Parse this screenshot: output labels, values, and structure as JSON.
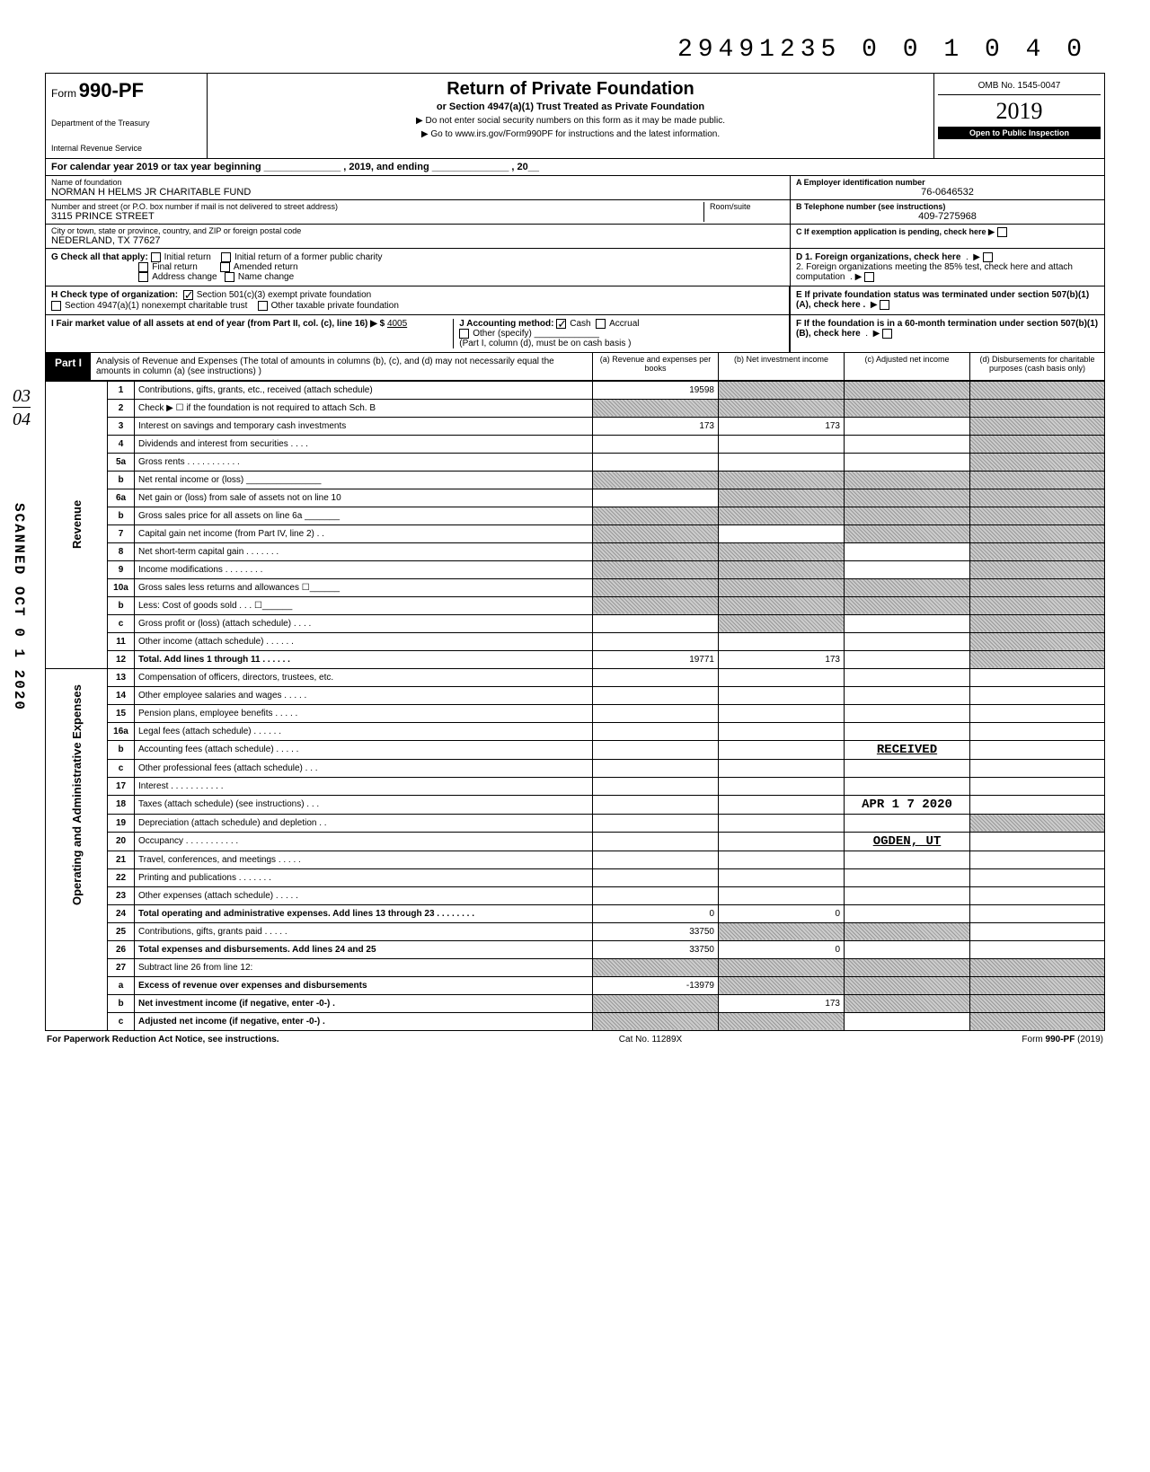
{
  "top_dln": "29491235 0 0 1 0 4   0",
  "header": {
    "form_prefix": "Form",
    "form_no": "990-PF",
    "dept1": "Department of the Treasury",
    "dept2": "Internal Revenue Service",
    "title": "Return of Private Foundation",
    "subtitle": "or Section 4947(a)(1) Trust Treated as Private Foundation",
    "line1": "▶ Do not enter social security numbers on this form as it may be made public.",
    "line2": "▶ Go to www.irs.gov/Form990PF for instructions and the latest information.",
    "omb": "OMB No. 1545-0047",
    "year": "2019",
    "open": "Open to Public Inspection"
  },
  "cal_year": "For calendar year 2019 or tax year beginning ______________ , 2019, and ending ______________ , 20__",
  "name_block": {
    "name_label": "Name of foundation",
    "name": "NORMAN H HELMS JR CHARITABLE FUND",
    "street_label": "Number and street (or P.O. box number if mail is not delivered to street address)",
    "street": "3115 PRINCE STREET",
    "room_label": "Room/suite",
    "city_label": "City or town, state or province, country, and ZIP or foreign postal code",
    "city": "NEDERLAND, TX 77627",
    "ein_label": "A  Employer identification number",
    "ein": "76-0646532",
    "tel_label": "B  Telephone number (see instructions)",
    "tel": "409-7275968",
    "c_label": "C  If exemption application is pending, check here ▶"
  },
  "checks": {
    "g_label": "G  Check all that apply:",
    "g_opts": [
      "Initial return",
      "Initial return of a former public charity",
      "Final return",
      "Amended return",
      "Address change",
      "Name change"
    ],
    "h_label": "H  Check type of organization:",
    "h_opts": [
      "Section 501(c)(3) exempt private foundation",
      "Section 4947(a)(1) nonexempt charitable trust",
      "Other taxable private foundation"
    ],
    "h_checked": 0,
    "i_label": "I   Fair market value of all assets at end of year  (from Part II, col. (c), line 16) ▶ $",
    "i_val": "4005",
    "j_label": "J   Accounting method:",
    "j_opts": [
      "Cash",
      "Accrual",
      "Other (specify)"
    ],
    "j_note": "(Part I, column (d), must be on cash basis )",
    "d_label": "D  1. Foreign organizations, check here",
    "d2_label": "2. Foreign organizations meeting the 85% test, check here and attach computation",
    "e_label": "E  If private foundation status was terminated under section 507(b)(1)(A), check here  .",
    "f_label": "F  If the foundation is in a 60-month termination under section 507(b)(1)(B), check here"
  },
  "part1": {
    "label": "Part I",
    "desc": "Analysis of Revenue and Expenses (The total of amounts in columns (b), (c), and (d) may not necessarily equal the amounts in column (a) (see instructions) )",
    "cols": {
      "a": "(a) Revenue and expenses per books",
      "b": "(b) Net investment income",
      "c": "(c) Adjusted net income",
      "d": "(d) Disbursements for charitable purposes (cash basis only)"
    }
  },
  "side_stamp": "SCANNED OCT 0 1 2020",
  "side_frac_top": "03",
  "side_frac_bot": "04",
  "received": {
    "l1": "RECEIVED",
    "l2": "APR 1 7 2020",
    "l3": "OGDEN, UT"
  },
  "rows": [
    {
      "n": "1",
      "d": "Contributions, gifts, grants, etc., received (attach schedule)",
      "a": "19598",
      "b": "shaded",
      "c": "shaded",
      "dd": "shaded"
    },
    {
      "n": "2",
      "d": "Check ▶ ☐ if the foundation is not required to attach Sch. B",
      "a": "shaded",
      "b": "shaded",
      "c": "shaded",
      "dd": "shaded"
    },
    {
      "n": "3",
      "d": "Interest on savings and temporary cash investments",
      "a": "173",
      "b": "173",
      "c": "",
      "dd": "shaded"
    },
    {
      "n": "4",
      "d": "Dividends and interest from securities  .   .   .   .",
      "a": "",
      "b": "",
      "c": "",
      "dd": "shaded"
    },
    {
      "n": "5a",
      "d": "Gross rents .   .   .   .   .   .   .   .   .   .   .",
      "a": "",
      "b": "",
      "c": "",
      "dd": "shaded"
    },
    {
      "n": "b",
      "d": "Net rental income or (loss) _______________",
      "a": "shaded",
      "b": "shaded",
      "c": "shaded",
      "dd": "shaded"
    },
    {
      "n": "6a",
      "d": "Net gain or (loss) from sale of assets not on line 10",
      "a": "",
      "b": "shaded",
      "c": "shaded",
      "dd": "shaded"
    },
    {
      "n": "b",
      "d": "Gross sales price for all assets on line 6a _______",
      "a": "shaded",
      "b": "shaded",
      "c": "shaded",
      "dd": "shaded"
    },
    {
      "n": "7",
      "d": "Capital gain net income (from Part IV, line 2)  .   .",
      "a": "shaded",
      "b": "",
      "c": "shaded",
      "dd": "shaded"
    },
    {
      "n": "8",
      "d": "Net short-term capital gain .   .   .   .   .   .   .",
      "a": "shaded",
      "b": "shaded",
      "c": "",
      "dd": "shaded"
    },
    {
      "n": "9",
      "d": "Income modifications    .   .   .   .   .   .   .   .",
      "a": "shaded",
      "b": "shaded",
      "c": "",
      "dd": "shaded"
    },
    {
      "n": "10a",
      "d": "Gross sales less returns and allowances ☐______",
      "a": "shaded",
      "b": "shaded",
      "c": "shaded",
      "dd": "shaded"
    },
    {
      "n": "b",
      "d": "Less: Cost of goods sold   .   .   .   ☐______",
      "a": "shaded",
      "b": "shaded",
      "c": "shaded",
      "dd": "shaded"
    },
    {
      "n": "c",
      "d": "Gross profit or (loss) (attach schedule) .   .   .   .",
      "a": "",
      "b": "shaded",
      "c": "",
      "dd": "shaded"
    },
    {
      "n": "11",
      "d": "Other income (attach schedule)  .   .   .   .   .   .",
      "a": "",
      "b": "",
      "c": "",
      "dd": "shaded"
    },
    {
      "n": "12",
      "d": "Total. Add lines 1 through 11 .   .   .   .   .   .",
      "a": "19771",
      "b": "173",
      "c": "",
      "dd": "shaded",
      "bold": true
    },
    {
      "n": "13",
      "d": "Compensation of officers, directors, trustees, etc.",
      "a": "",
      "b": "",
      "c": "",
      "dd": ""
    },
    {
      "n": "14",
      "d": "Other employee salaries and wages .   .   .   .   .",
      "a": "",
      "b": "",
      "c": "",
      "dd": ""
    },
    {
      "n": "15",
      "d": "Pension plans, employee benefits   .   .   .   .   .",
      "a": "",
      "b": "",
      "c": "",
      "dd": ""
    },
    {
      "n": "16a",
      "d": "Legal fees (attach schedule)   .   .   .   .   .   .",
      "a": "",
      "b": "",
      "c": "",
      "dd": ""
    },
    {
      "n": "b",
      "d": "Accounting fees (attach schedule)   .   .   .   .   .",
      "a": "",
      "b": "",
      "c": "stamp1",
      "dd": ""
    },
    {
      "n": "c",
      "d": "Other professional fees (attach schedule) .   .   .",
      "a": "",
      "b": "",
      "c": "",
      "dd": ""
    },
    {
      "n": "17",
      "d": "Interest   .   .   .   .   .   .   .   .   .   .   .",
      "a": "",
      "b": "",
      "c": "",
      "dd": ""
    },
    {
      "n": "18",
      "d": "Taxes (attach schedule) (see instructions) .   .   .",
      "a": "",
      "b": "",
      "c": "stamp2",
      "dd": ""
    },
    {
      "n": "19",
      "d": "Depreciation (attach schedule) and depletion .   .",
      "a": "",
      "b": "",
      "c": "",
      "dd": "shaded"
    },
    {
      "n": "20",
      "d": "Occupancy .   .   .   .   .   .   .   .   .   .   .",
      "a": "",
      "b": "",
      "c": "stamp3",
      "dd": ""
    },
    {
      "n": "21",
      "d": "Travel, conferences, and meetings   .   .   .   .   .",
      "a": "",
      "b": "",
      "c": "",
      "dd": ""
    },
    {
      "n": "22",
      "d": "Printing and publications   .   .   .   .   .   .   .",
      "a": "",
      "b": "",
      "c": "",
      "dd": ""
    },
    {
      "n": "23",
      "d": "Other expenses (attach schedule)    .   .   .   .   .",
      "a": "",
      "b": "",
      "c": "",
      "dd": ""
    },
    {
      "n": "24",
      "d": "Total operating and administrative expenses. Add lines 13 through 23 .   .   .   .   .   .   .   .",
      "a": "0",
      "b": "0",
      "c": "",
      "dd": "",
      "bold": true
    },
    {
      "n": "25",
      "d": "Contributions, gifts, grants paid   .   .   .   .   .",
      "a": "33750",
      "b": "shaded",
      "c": "shaded",
      "dd": ""
    },
    {
      "n": "26",
      "d": "Total expenses and disbursements. Add lines 24 and 25",
      "a": "33750",
      "b": "0",
      "c": "",
      "dd": "",
      "bold": true
    },
    {
      "n": "27",
      "d": "Subtract line 26 from line 12:",
      "a": "shaded",
      "b": "shaded",
      "c": "shaded",
      "dd": "shaded"
    },
    {
      "n": "a",
      "d": "Excess of revenue over expenses and disbursements",
      "a": "-13979",
      "b": "shaded",
      "c": "shaded",
      "dd": "shaded",
      "bold": true
    },
    {
      "n": "b",
      "d": "Net investment income (if negative, enter -0-)  .",
      "a": "shaded",
      "b": "173",
      "c": "shaded",
      "dd": "shaded",
      "bold": true
    },
    {
      "n": "c",
      "d": "Adjusted net income (if negative, enter -0-)   .",
      "a": "shaded",
      "b": "shaded",
      "c": "",
      "dd": "shaded",
      "bold": true
    }
  ],
  "vert_labels": {
    "rev": "Revenue",
    "exp": "Operating and Administrative Expenses"
  },
  "footer": {
    "left": "For Paperwork Reduction Act Notice, see instructions.",
    "center": "Cat  No. 11289X",
    "right": "Form 990-PF (2019)"
  }
}
